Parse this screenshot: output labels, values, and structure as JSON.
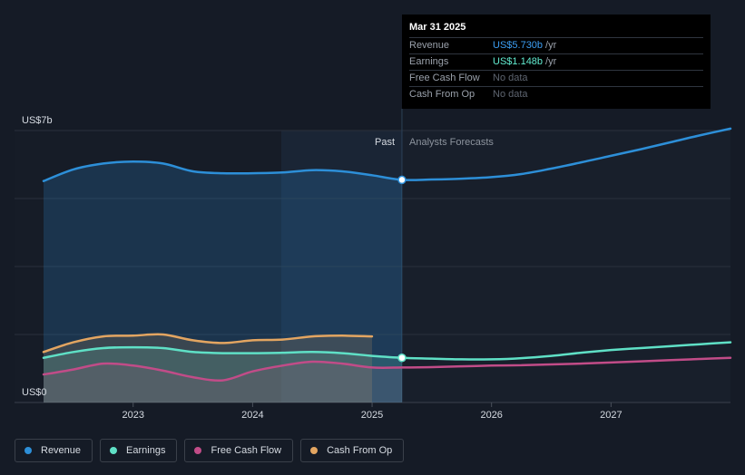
{
  "colors": {
    "revenue": "#2d8fd8",
    "earnings": "#5fe0c6",
    "free_cash_flow": "#c14c88",
    "cash_from_op": "#e3a561",
    "background": "#151b26"
  },
  "tooltip": {
    "date": "Mar 31 2025",
    "rows": [
      {
        "label": "Revenue",
        "value": "US$5.730b",
        "unit": "/yr",
        "color": "#3c9ef2"
      },
      {
        "label": "Earnings",
        "value": "US$1.148b",
        "unit": "/yr",
        "color": "#62ecd0"
      },
      {
        "label": "Free Cash Flow",
        "value": "No data",
        "unit": ""
      },
      {
        "label": "Cash From Op",
        "value": "No data",
        "unit": ""
      }
    ]
  },
  "labels": {
    "past": "Past",
    "forecast": "Analysts Forecasts",
    "y_top": "US$7b",
    "y_bottom": "US$0"
  },
  "legend": [
    {
      "label": "Revenue",
      "key": "revenue"
    },
    {
      "label": "Earnings",
      "key": "earnings"
    },
    {
      "label": "Free Cash Flow",
      "key": "free_cash_flow"
    },
    {
      "label": "Cash From Op",
      "key": "cash_from_op"
    }
  ],
  "chart_data": {
    "type": "line",
    "x_tick_labels": [
      "2023",
      "2024",
      "2025",
      "2026",
      "2027"
    ],
    "x_ticks": [
      2023.0,
      2024.0,
      2025.0,
      2026.0,
      2027.0
    ],
    "xlim": [
      2022.25,
      2028.0
    ],
    "ylim": [
      0,
      7
    ],
    "divider_x": 2025.25,
    "y_unit": "US$ billions",
    "series": [
      {
        "name": "Revenue",
        "key": "revenue",
        "points": [
          [
            2022.25,
            5.7
          ],
          [
            2022.5,
            6.0
          ],
          [
            2022.75,
            6.15
          ],
          [
            2023.0,
            6.2
          ],
          [
            2023.25,
            6.15
          ],
          [
            2023.5,
            5.95
          ],
          [
            2023.75,
            5.9
          ],
          [
            2024.0,
            5.9
          ],
          [
            2024.25,
            5.92
          ],
          [
            2024.5,
            5.98
          ],
          [
            2024.75,
            5.95
          ],
          [
            2025.0,
            5.85
          ],
          [
            2025.25,
            5.73
          ],
          [
            2025.5,
            5.74
          ],
          [
            2025.75,
            5.76
          ],
          [
            2026.0,
            5.8
          ],
          [
            2026.25,
            5.88
          ],
          [
            2026.5,
            6.02
          ],
          [
            2026.75,
            6.18
          ],
          [
            2027.0,
            6.35
          ],
          [
            2027.25,
            6.52
          ],
          [
            2027.5,
            6.7
          ],
          [
            2027.75,
            6.88
          ],
          [
            2028.0,
            7.05
          ]
        ]
      },
      {
        "name": "Earnings",
        "key": "earnings",
        "points": [
          [
            2022.25,
            1.15
          ],
          [
            2022.5,
            1.3
          ],
          [
            2022.75,
            1.4
          ],
          [
            2023.0,
            1.42
          ],
          [
            2023.25,
            1.4
          ],
          [
            2023.5,
            1.3
          ],
          [
            2023.75,
            1.27
          ],
          [
            2024.0,
            1.27
          ],
          [
            2024.25,
            1.28
          ],
          [
            2024.5,
            1.3
          ],
          [
            2024.75,
            1.27
          ],
          [
            2025.0,
            1.2
          ],
          [
            2025.25,
            1.15
          ],
          [
            2025.5,
            1.13
          ],
          [
            2025.75,
            1.11
          ],
          [
            2026.0,
            1.11
          ],
          [
            2026.25,
            1.14
          ],
          [
            2026.5,
            1.2
          ],
          [
            2026.75,
            1.28
          ],
          [
            2027.0,
            1.35
          ],
          [
            2027.25,
            1.4
          ],
          [
            2027.5,
            1.45
          ],
          [
            2027.75,
            1.5
          ],
          [
            2028.0,
            1.55
          ]
        ]
      },
      {
        "name": "Free Cash Flow",
        "key": "free_cash_flow",
        "points": [
          [
            2022.25,
            0.72
          ],
          [
            2022.5,
            0.85
          ],
          [
            2022.75,
            1.0
          ],
          [
            2023.0,
            0.95
          ],
          [
            2023.25,
            0.82
          ],
          [
            2023.5,
            0.65
          ],
          [
            2023.75,
            0.57
          ],
          [
            2024.0,
            0.8
          ],
          [
            2024.25,
            0.95
          ],
          [
            2024.5,
            1.05
          ],
          [
            2024.75,
            1.0
          ],
          [
            2025.0,
            0.9
          ],
          [
            2025.25,
            0.9
          ],
          [
            2025.5,
            0.91
          ],
          [
            2025.75,
            0.93
          ],
          [
            2026.0,
            0.95
          ],
          [
            2026.25,
            0.96
          ],
          [
            2026.5,
            0.98
          ],
          [
            2026.75,
            1.0
          ],
          [
            2027.0,
            1.03
          ],
          [
            2027.25,
            1.06
          ],
          [
            2027.5,
            1.09
          ],
          [
            2027.75,
            1.12
          ],
          [
            2028.0,
            1.15
          ]
        ]
      },
      {
        "name": "Cash From Op",
        "key": "cash_from_op",
        "points": [
          [
            2022.25,
            1.3
          ],
          [
            2022.5,
            1.55
          ],
          [
            2022.75,
            1.7
          ],
          [
            2023.0,
            1.72
          ],
          [
            2023.25,
            1.75
          ],
          [
            2023.5,
            1.6
          ],
          [
            2023.75,
            1.53
          ],
          [
            2024.0,
            1.6
          ],
          [
            2024.25,
            1.62
          ],
          [
            2024.5,
            1.7
          ],
          [
            2024.75,
            1.72
          ],
          [
            2025.0,
            1.7
          ]
        ]
      }
    ]
  }
}
